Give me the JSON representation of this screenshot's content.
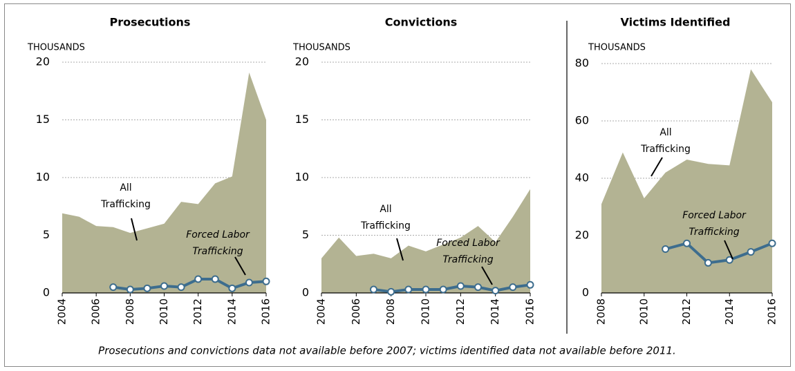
{
  "chart_data": [
    {
      "type": "line",
      "title": "Prosecutions",
      "ylabel": "THOUSANDS",
      "x": [
        2004,
        2005,
        2006,
        2007,
        2008,
        2009,
        2010,
        2011,
        2012,
        2013,
        2014,
        2015,
        2016
      ],
      "xlim": [
        2004,
        2016
      ],
      "xticks": [
        2004,
        2006,
        2008,
        2010,
        2012,
        2014,
        2016
      ],
      "ylim": [
        0,
        20
      ],
      "yticks": [
        0,
        5,
        10,
        15,
        20
      ],
      "grid": true,
      "series": [
        {
          "style": "area",
          "color": "#b3b393",
          "values": [
            6.9,
            6.6,
            5.8,
            5.7,
            5.2,
            5.6,
            6.0,
            7.9,
            7.7,
            9.5,
            10.1,
            19.1,
            15.0
          ]
        },
        {
          "style": "line_markers",
          "color": "#3d6d8e",
          "values": [
            null,
            null,
            null,
            0.5,
            0.3,
            0.4,
            0.6,
            0.5,
            1.2,
            1.2,
            0.4,
            0.9,
            1.0
          ]
        }
      ],
      "annotations": [
        {
          "lines": [
            "All",
            "Trafficking"
          ]
        },
        {
          "lines": [
            "Forced Labor",
            "Trafficking"
          ],
          "italic": true
        }
      ]
    },
    {
      "type": "line",
      "title": "Convictions",
      "ylabel": "THOUSANDS",
      "x": [
        2004,
        2005,
        2006,
        2007,
        2008,
        2009,
        2010,
        2011,
        2012,
        2013,
        2014,
        2015,
        2016
      ],
      "xlim": [
        2004,
        2016
      ],
      "xticks": [
        2004,
        2006,
        2008,
        2010,
        2012,
        2014,
        2016
      ],
      "ylim": [
        0,
        20
      ],
      "yticks": [
        0,
        5,
        10,
        15,
        20
      ],
      "grid": true,
      "series": [
        {
          "style": "area",
          "color": "#b3b393",
          "values": [
            3.0,
            4.8,
            3.2,
            3.4,
            3.0,
            4.1,
            3.6,
            4.2,
            4.8,
            5.8,
            4.4,
            6.6,
            9.0
          ]
        },
        {
          "style": "line_markers",
          "color": "#3d6d8e",
          "values": [
            null,
            null,
            null,
            0.3,
            0.1,
            0.3,
            0.3,
            0.3,
            0.6,
            0.5,
            0.2,
            0.5,
            0.7
          ]
        }
      ],
      "annotations": [
        {
          "lines": [
            "All",
            "Trafficking"
          ]
        },
        {
          "lines": [
            "Forced Labor",
            "Trafficking"
          ],
          "italic": true
        }
      ]
    },
    {
      "type": "line",
      "title": "Victims Identified",
      "ylabel": "THOUSANDS",
      "x": [
        2008,
        2009,
        2010,
        2011,
        2012,
        2013,
        2014,
        2015,
        2016
      ],
      "xlim": [
        2008,
        2016
      ],
      "xticks": [
        2008,
        2010,
        2012,
        2014,
        2016
      ],
      "ylim": [
        0,
        80
      ],
      "yticks": [
        0,
        20,
        40,
        60,
        80
      ],
      "grid": true,
      "series": [
        {
          "style": "area",
          "color": "#b3b393",
          "values": [
            31,
            49,
            33,
            42,
            46.5,
            45,
            44.5,
            78,
            66.5
          ]
        },
        {
          "style": "line_markers",
          "color": "#3d6d8e",
          "values": [
            null,
            null,
            null,
            15.3,
            17.3,
            10.5,
            11.5,
            14.3,
            17.3
          ]
        }
      ],
      "annotations": [
        {
          "lines": [
            "All",
            "Trafficking"
          ]
        },
        {
          "lines": [
            "Forced Labor",
            "Trafficking"
          ],
          "italic": true
        }
      ]
    }
  ],
  "note": "Prosecutions and convictions data not available before 2007; victims identified data not available before 2011."
}
